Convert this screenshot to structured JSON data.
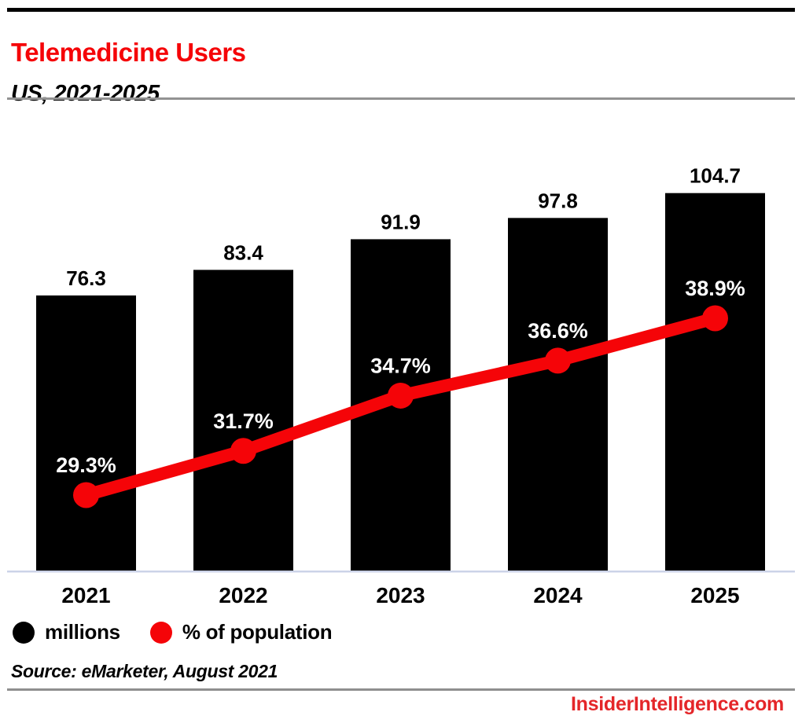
{
  "header": {
    "title": "Telemedicine Users",
    "subtitle": "US, 2021-2025"
  },
  "chart_data": {
    "type": "bar",
    "title": "Telemedicine Users",
    "subtitle": "US, 2021-2025",
    "categories": [
      "2021",
      "2022",
      "2023",
      "2024",
      "2025"
    ],
    "series": [
      {
        "name": "millions",
        "type": "bar",
        "color": "#000000",
        "values": [
          76.3,
          83.4,
          91.9,
          97.8,
          104.7
        ],
        "value_labels": [
          "76.3",
          "83.4",
          "91.9",
          "97.8",
          "104.7"
        ]
      },
      {
        "name": "% of population",
        "type": "line",
        "color": "#f50408",
        "values": [
          29.3,
          31.7,
          34.7,
          36.6,
          38.9
        ],
        "value_labels": [
          "29.3%",
          "31.7%",
          "36.6%",
          "38.9%"
        ],
        "value_labels_full": [
          "29.3%",
          "31.7%",
          "34.7%",
          "36.6%",
          "38.9%"
        ]
      }
    ],
    "xlabel": "",
    "ylabel": "",
    "grid": false,
    "legend_position": "bottom",
    "value_labels_shown": true
  },
  "legend": {
    "items": [
      {
        "label": "millions",
        "color": "#000000"
      },
      {
        "label": "% of population",
        "color": "#f50408"
      }
    ]
  },
  "footer": {
    "source": "Source: eMarketer, August 2021",
    "branding": "InsiderIntelligence.com"
  },
  "colors": {
    "accent_red": "#f50408",
    "brand_red": "#e42629",
    "bar_black": "#000000",
    "axis_baseline": "#ccd3e8",
    "rule_gray": "#939393"
  }
}
